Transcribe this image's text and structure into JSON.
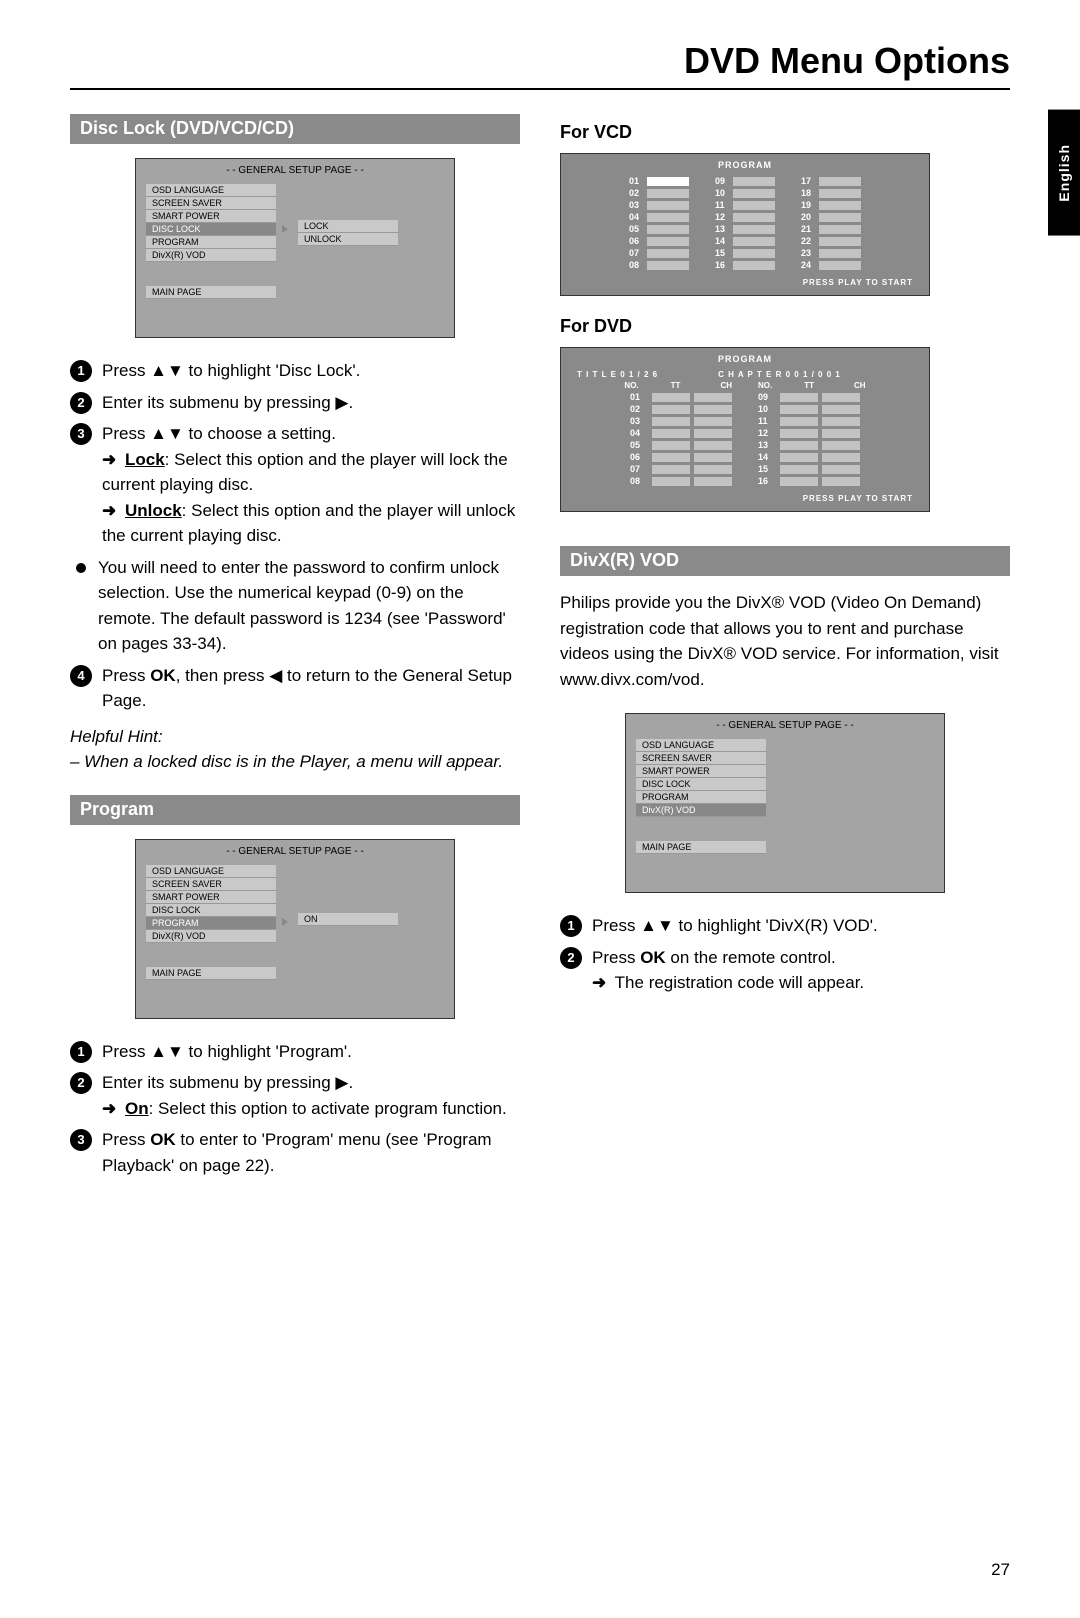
{
  "page_title": "DVD Menu Options",
  "page_number": "27",
  "language_tab": "English",
  "left": {
    "disc_lock": {
      "bar": "Disc Lock (DVD/VCD/CD)",
      "setup": {
        "title": "- - GENERAL SETUP PAGE - -",
        "items": [
          "OSD LANGUAGE",
          "SCREEN SAVER",
          "SMART POWER",
          "DISC LOCK",
          "PROGRAM",
          "DivX(R) VOD"
        ],
        "selected_index": 3,
        "sub": [
          "LOCK",
          "UNLOCK"
        ],
        "main": "MAIN PAGE"
      },
      "steps": {
        "s1": "Press ▲▼ to highlight 'Disc Lock'.",
        "s2": "Enter its submenu by pressing ▶.",
        "s3": "Press ▲▼ to choose a setting.",
        "s3_lock_label": "Lock",
        "s3_lock_text": ": Select this option and the player will lock the current playing disc.",
        "s3_unlock_label": "Unlock",
        "s3_unlock_text": ": Select this option and the player will unlock the current playing disc.",
        "bullet": "You will need to enter the password to confirm unlock selection.  Use the numerical keypad (0-9) on the remote. The default password is 1234 (see 'Password' on pages 33-34).",
        "s4_a": "Press ",
        "s4_ok": "OK",
        "s4_b": ", then press ◀ to return to the General Setup Page.",
        "hint_label": "Helpful Hint:",
        "hint_text": "–   When a locked disc is in the Player, a menu will appear."
      }
    },
    "program": {
      "bar": "Program",
      "setup": {
        "title": "- - GENERAL SETUP PAGE - -",
        "items": [
          "OSD LANGUAGE",
          "SCREEN SAVER",
          "SMART POWER",
          "DISC LOCK",
          "PROGRAM",
          "DivX(R) VOD"
        ],
        "selected_index": 4,
        "sub": [
          "ON"
        ],
        "main": "MAIN PAGE"
      },
      "steps": {
        "s1": "Press ▲▼ to highlight 'Program'.",
        "s2": "Enter its submenu by pressing ▶.",
        "s2_on_label": "On",
        "s2_on_text": ": Select this option to activate program function.",
        "s3_a": "Press ",
        "s3_ok": "OK",
        "s3_b": " to enter to 'Program' menu (see 'Program Playback' on page 22)."
      }
    }
  },
  "right": {
    "vcd": {
      "head": "For VCD",
      "title": "PROGRAM",
      "nums": [
        [
          "01",
          "02",
          "03",
          "04",
          "05",
          "06",
          "07",
          "08"
        ],
        [
          "09",
          "10",
          "11",
          "12",
          "13",
          "14",
          "15",
          "16"
        ],
        [
          "17",
          "18",
          "19",
          "20",
          "21",
          "22",
          "23",
          "24"
        ]
      ],
      "foot": "PRESS PLAY TO START"
    },
    "dvd": {
      "head": "For DVD",
      "title": "PROGRAM",
      "info_title": "T I T L E 0 1 / 2 6",
      "info_chap": "C H A P T E R 0 0 1 / 0 0 1",
      "colhead": [
        "NO.",
        "TT",
        "CH"
      ],
      "nums": [
        [
          "01",
          "02",
          "03",
          "04",
          "05",
          "06",
          "07",
          "08"
        ],
        [
          "09",
          "10",
          "11",
          "12",
          "13",
          "14",
          "15",
          "16"
        ]
      ],
      "foot": "PRESS PLAY TO START"
    },
    "divx": {
      "bar": "DivX(R) VOD",
      "intro": "Philips provide you the DivX® VOD (Video On Demand) registration code that allows you to rent and purchase videos using the DivX® VOD service. For information, visit www.divx.com/vod.",
      "setup": {
        "title": "- - GENERAL SETUP PAGE - -",
        "items": [
          "OSD LANGUAGE",
          "SCREEN SAVER",
          "SMART POWER",
          "DISC LOCK",
          "PROGRAM",
          "DivX(R) VOD"
        ],
        "selected_index": 5,
        "main": "MAIN PAGE"
      },
      "steps": {
        "s1": "Press ▲▼ to highlight 'DivX(R) VOD'.",
        "s2_a": "Press ",
        "s2_ok": "OK",
        "s2_b": " on the remote control.",
        "s2_arrow": "The registration code will appear."
      }
    }
  },
  "colors": {
    "bar_bg": "#8a8a8a",
    "bar_fg": "#ffffff",
    "setup_bg": "#a4a4a4",
    "setup_item_bg": "#c9c9c9",
    "setup_sel_bg": "#888888",
    "prog_bg": "#8a8a8a",
    "prog_slot": "#c3c3c3"
  }
}
